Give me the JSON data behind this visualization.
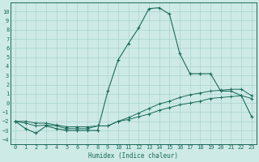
{
  "xlabel": "Humidex (Indice chaleur)",
  "xlim": [
    -0.5,
    23.5
  ],
  "ylim": [
    -4.5,
    11.0
  ],
  "xticks": [
    0,
    1,
    2,
    3,
    4,
    5,
    6,
    7,
    8,
    9,
    10,
    11,
    12,
    13,
    14,
    15,
    16,
    17,
    18,
    19,
    20,
    21,
    22,
    23
  ],
  "yticks": [
    -4,
    -3,
    -2,
    -1,
    0,
    1,
    2,
    3,
    4,
    5,
    6,
    7,
    8,
    9,
    10
  ],
  "bg_color": "#ceeae6",
  "grid_color": "#a8d4cf",
  "line_color": "#1a6b5a",
  "line1_x": [
    0,
    1,
    2,
    3,
    4,
    5,
    6,
    7,
    8,
    9,
    10,
    11,
    12,
    13,
    14,
    15,
    16,
    17,
    18,
    19,
    20,
    21,
    22,
    23
  ],
  "line1_y": [
    -2.0,
    -2.8,
    -3.3,
    -2.5,
    -2.8,
    -3.0,
    -3.0,
    -3.0,
    -3.0,
    1.3,
    4.7,
    6.5,
    8.2,
    10.3,
    10.4,
    9.7,
    5.4,
    3.2,
    3.2,
    3.2,
    1.3,
    1.3,
    0.8,
    -1.5
  ],
  "line2_x": [
    0,
    1,
    2,
    3,
    4,
    5,
    6,
    7,
    8,
    9,
    10,
    11,
    12,
    13,
    14,
    15,
    16,
    17,
    18,
    19,
    20,
    21,
    22,
    23
  ],
  "line2_y": [
    -2.0,
    -2.2,
    -2.5,
    -2.4,
    -2.5,
    -2.8,
    -2.8,
    -2.8,
    -2.5,
    -2.5,
    -2.0,
    -1.6,
    -1.1,
    -0.6,
    -0.1,
    0.2,
    0.6,
    0.9,
    1.1,
    1.3,
    1.4,
    1.5,
    1.5,
    0.8
  ],
  "line3_x": [
    0,
    1,
    2,
    3,
    4,
    5,
    6,
    7,
    8,
    9,
    10,
    11,
    12,
    13,
    14,
    15,
    16,
    17,
    18,
    19,
    20,
    21,
    22,
    23
  ],
  "line3_y": [
    -2.0,
    -2.0,
    -2.2,
    -2.2,
    -2.4,
    -2.6,
    -2.6,
    -2.6,
    -2.5,
    -2.5,
    -2.0,
    -1.8,
    -1.5,
    -1.2,
    -0.8,
    -0.5,
    -0.2,
    0.0,
    0.2,
    0.5,
    0.6,
    0.7,
    0.8,
    0.5
  ],
  "figsize": [
    3.2,
    2.0
  ],
  "dpi": 100
}
